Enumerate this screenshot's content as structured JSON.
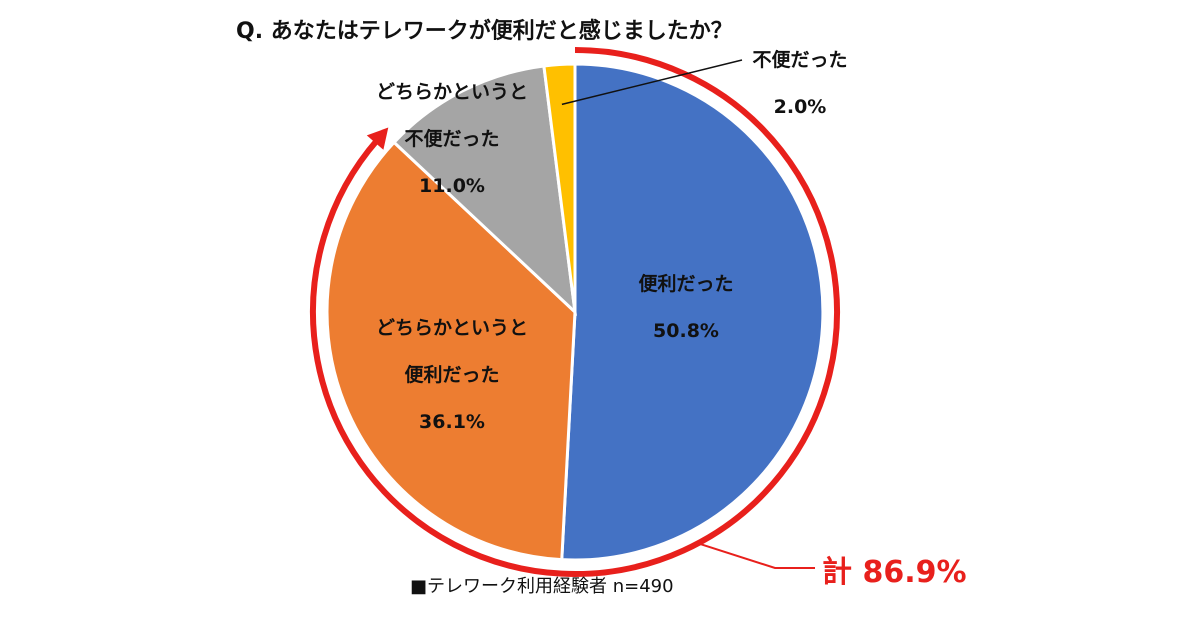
{
  "chart_data": {
    "type": "pie",
    "title": "Q. あなたはテレワークが便利だと感じましたか？",
    "slices": [
      {
        "label_lines": [
          "便利だった"
        ],
        "value": 50.8,
        "value_label": "50.8%",
        "color": "#4472c4"
      },
      {
        "label_lines": [
          "どちらかというと",
          "便利だった"
        ],
        "value": 36.1,
        "value_label": "36.1%",
        "color": "#ed7d31"
      },
      {
        "label_lines": [
          "どちらかというと",
          "不便だった"
        ],
        "value": 11.0,
        "value_label": "11.0%",
        "color": "#a5a5a5"
      },
      {
        "label_lines": [
          "不便だった"
        ],
        "value": 2.0,
        "value_label": "2.0%",
        "color": "#ffc000"
      }
    ],
    "direction": "clockwise",
    "start": "12 o'clock",
    "highlight": {
      "label": "計 86.9%",
      "color": "#e8201c",
      "covers": [
        "便利だった",
        "どちらかというと便利だった"
      ]
    },
    "footnote": "■テレワーク利用経験者 n=490"
  }
}
